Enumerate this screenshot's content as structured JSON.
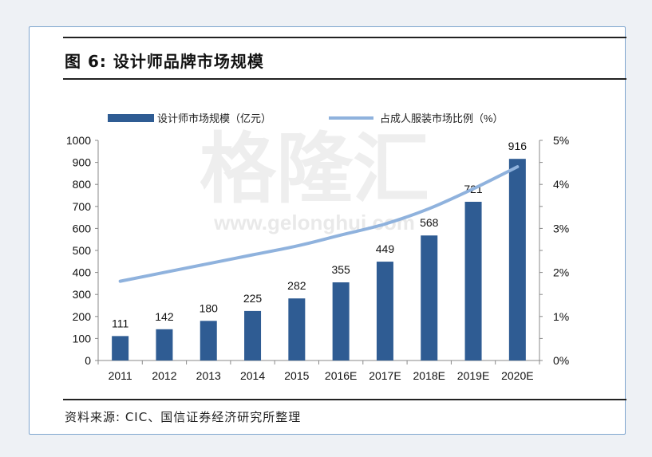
{
  "figure": {
    "title": "图 6:  设计师品牌市场规模",
    "source": "资料来源:  CIC、国信证券经济研究所整理",
    "watermark_cn": "格隆汇",
    "watermark_url": "www.gelonghui.com"
  },
  "colors": {
    "bar": "#2f5c93",
    "line": "#8fb2dd",
    "frame": "#7fa6cf"
  },
  "chart_data": {
    "type": "bar",
    "categories": [
      "2011",
      "2012",
      "2013",
      "2014",
      "2015",
      "2016E",
      "2017E",
      "2018E",
      "2019E",
      "2020E"
    ],
    "series": [
      {
        "name": "设计师市场规模（亿元）",
        "type": "bar",
        "axis": "left",
        "values": [
          111,
          142,
          180,
          225,
          282,
          355,
          449,
          568,
          721,
          916
        ]
      },
      {
        "name": "占成人服装市场比例（%）",
        "type": "line",
        "axis": "right",
        "values": [
          1.8,
          2.0,
          2.2,
          2.4,
          2.6,
          2.85,
          3.1,
          3.45,
          3.9,
          4.4
        ]
      }
    ],
    "ylim": [
      0,
      1000
    ],
    "yticks": [
      "0",
      "100",
      "200",
      "300",
      "400",
      "500",
      "600",
      "700",
      "800",
      "900",
      "1000"
    ],
    "y2lim": [
      0,
      5
    ],
    "y2ticks": [
      "0%",
      "1%",
      "1%",
      "2%",
      "2%",
      "3%",
      "3%",
      "4%",
      "4%",
      "5%",
      "5%"
    ],
    "legend_position": "top",
    "grid": false
  }
}
